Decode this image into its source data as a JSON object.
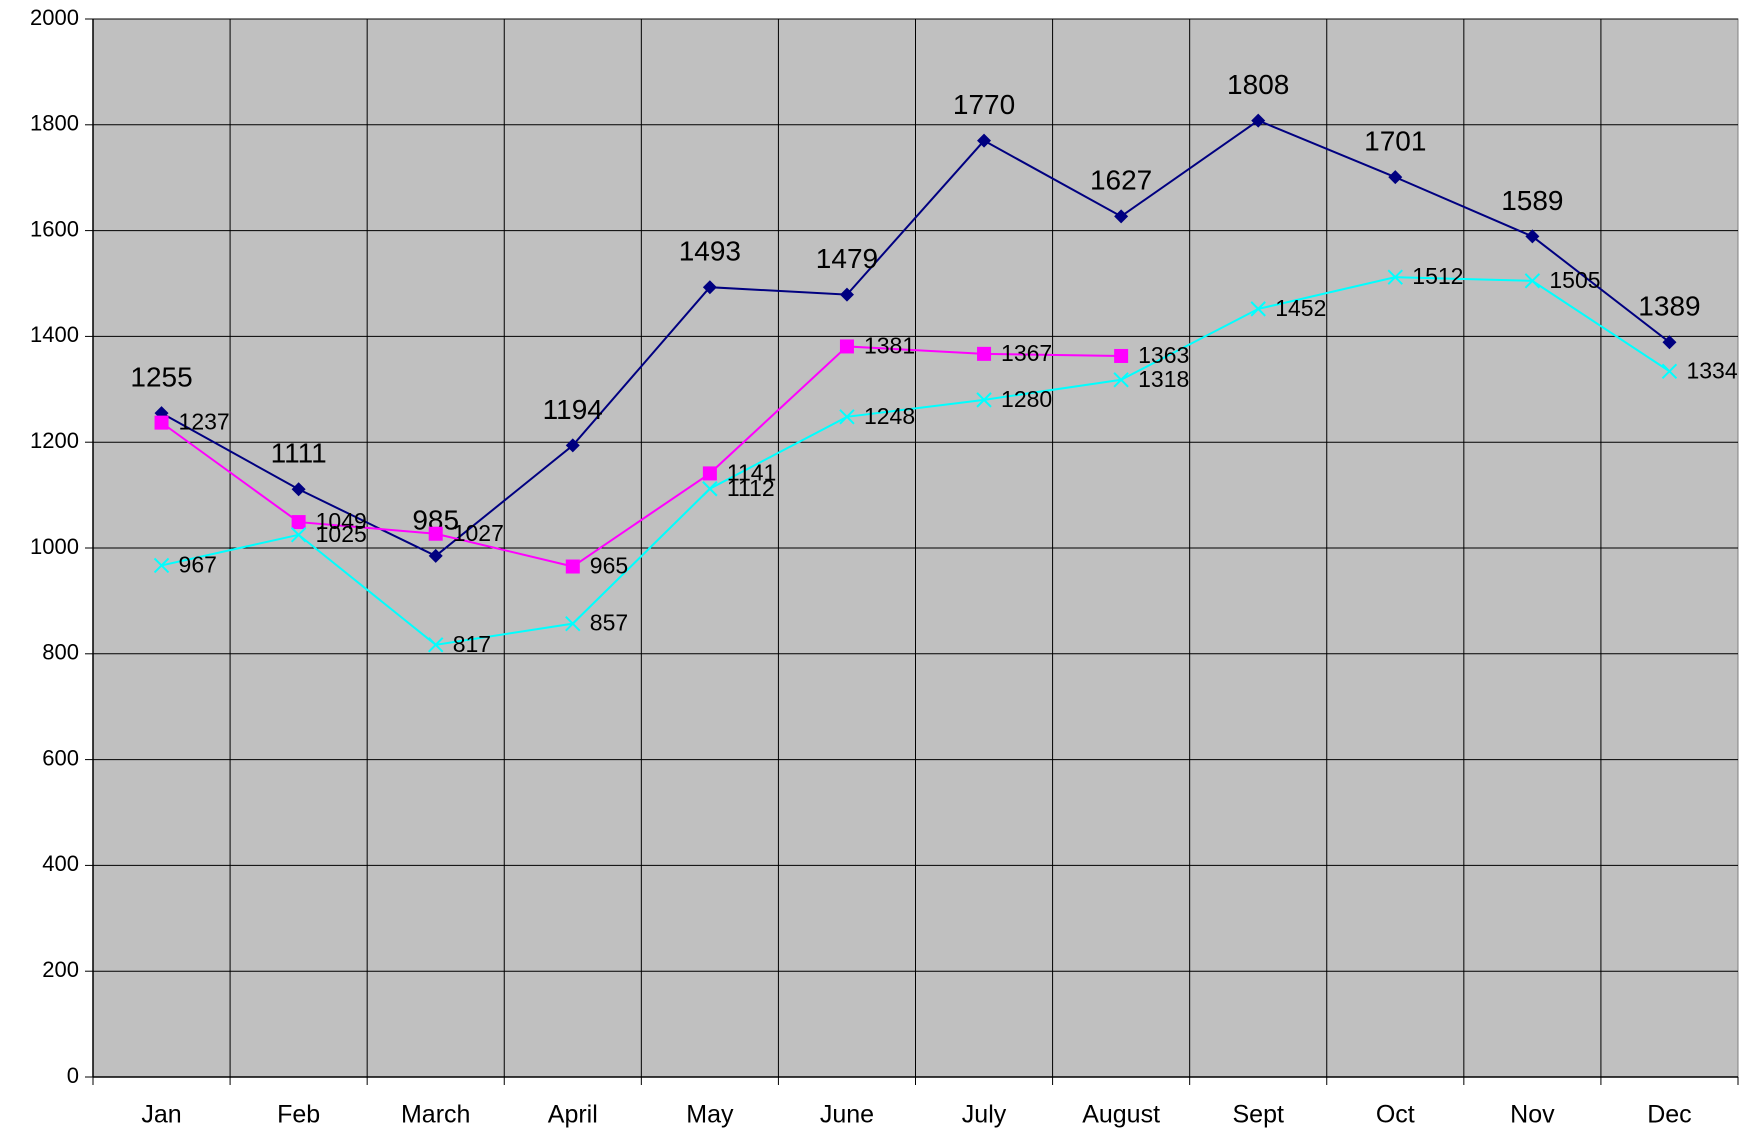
{
  "chart_data": {
    "type": "line",
    "categories": [
      "Jan",
      "Feb",
      "March",
      "April",
      "May",
      "June",
      "July",
      "August",
      "Sept",
      "Oct",
      "Nov",
      "Dec"
    ],
    "series": [
      {
        "color": "#000080",
        "marker": "diamond",
        "values": [
          1255,
          1111,
          985,
          1194,
          1493,
          1479,
          1770,
          1627,
          1808,
          1701,
          1589,
          1389
        ]
      },
      {
        "color": "#ff00ff",
        "marker": "square",
        "values": [
          1237,
          1049,
          1027,
          965,
          1141,
          1381,
          1367,
          1363,
          null,
          null,
          null,
          null
        ]
      },
      {
        "color": "#00ffff",
        "marker": "x",
        "values": [
          967,
          1025,
          817,
          857,
          1112,
          1248,
          1280,
          1318,
          1452,
          1512,
          1505,
          1334
        ]
      }
    ],
    "ylim": [
      0,
      2000
    ],
    "yticks": [
      0,
      200,
      400,
      600,
      800,
      1000,
      1200,
      1400,
      1600,
      1800,
      2000
    ],
    "grid": true,
    "background": "#c0c0c0"
  }
}
